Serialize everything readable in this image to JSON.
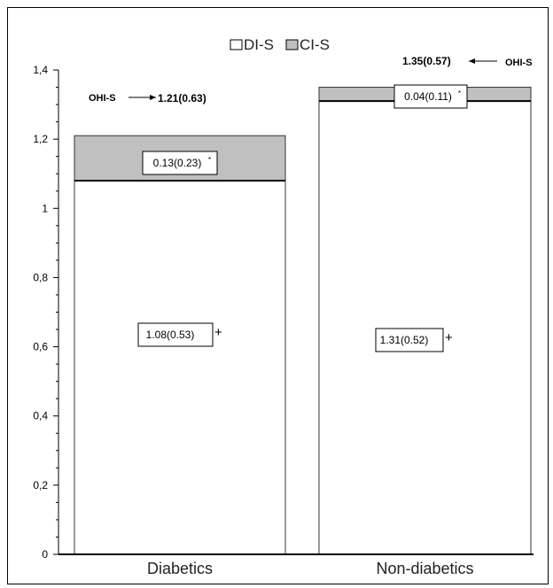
{
  "chart_data": {
    "type": "bar",
    "stacked": true,
    "categories": [
      "Diabetics",
      "Non-diabetics"
    ],
    "series": [
      {
        "name": "DI-S",
        "values": [
          1.08,
          1.31
        ],
        "color": "#ffffff"
      },
      {
        "name": "CI-S",
        "values": [
          0.13,
          0.04
        ],
        "color": "#c0c0c0"
      }
    ],
    "ylim": [
      0,
      1.4
    ],
    "yticks": [
      "0",
      "0,2",
      "0,4",
      "0,6",
      "0,8",
      "1",
      "1,2",
      "1,4"
    ],
    "legend": {
      "placement": "top-center",
      "entries": [
        "DI-S",
        "CI-S"
      ]
    },
    "grid": false,
    "annotations": {
      "diabetics": {
        "di_s_label": "1.08(0.53)",
        "di_s_mark": "+",
        "ci_s_label": "0.13(0.23)",
        "ci_s_mark": "*",
        "ohi_label": "OHI-S",
        "total_label": "1.21(0.63)"
      },
      "non_diabetics": {
        "di_s_label": "1.31(0.52)",
        "di_s_mark": "+",
        "ci_s_label": "0.04(0.11)",
        "ci_s_mark": "*",
        "ohi_label": "OHI-S",
        "total_label": "1.35(0.57)"
      }
    }
  }
}
